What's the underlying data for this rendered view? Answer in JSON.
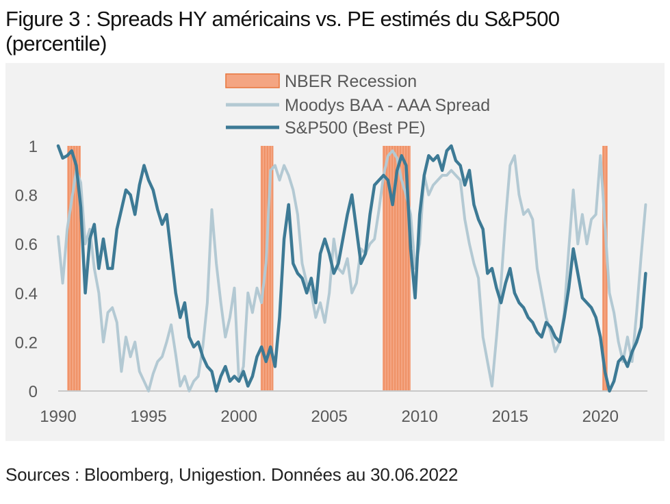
{
  "title": "Figure 3 : Spreads HY américains vs. PE estimés du S&P500 (percentile)",
  "source_note": "Sources : Bloomberg, Unigestion. Données au 30.06.2022",
  "colors": {
    "recession": "#f4a582",
    "recession_border": "#e8743b",
    "moodys": "#b3c9d3",
    "sp500": "#3d7a95",
    "axis": "#c8c8c8",
    "panel": "#f2f2f2"
  },
  "chart_data": {
    "type": "line",
    "title": "Figure 3 : Spreads HY américains vs. PE estimés du S&P500 (percentile)",
    "xlabel": "",
    "ylabel": "",
    "xlim": [
      1990,
      2022.6
    ],
    "ylim": [
      0,
      1
    ],
    "x_ticks": [
      "1990",
      "1995",
      "2000",
      "2005",
      "2010",
      "2015",
      "2020"
    ],
    "y_ticks": [
      "0",
      "0.2",
      "0.4",
      "0.6",
      "0.8",
      "1"
    ],
    "grid": false,
    "legend_position": "top-center",
    "legend": [
      "NBER Recession",
      "Moodys BAA - AAA Spread",
      "S&P500 (Best PE)"
    ],
    "recessions": [
      {
        "start": 1990.5,
        "end": 1991.25
      },
      {
        "start": 2001.2,
        "end": 2001.9
      },
      {
        "start": 2007.95,
        "end": 2009.5
      },
      {
        "start": 2020.1,
        "end": 2020.4
      }
    ],
    "series": [
      {
        "name": "Moodys BAA - AAA Spread",
        "x": [
          1990.0,
          1990.25,
          1990.5,
          1990.75,
          1991.0,
          1991.25,
          1991.5,
          1991.75,
          1992.0,
          1992.25,
          1992.5,
          1992.75,
          1993.0,
          1993.25,
          1993.5,
          1993.75,
          1994.0,
          1994.25,
          1994.5,
          1994.75,
          1995.0,
          1995.25,
          1995.5,
          1995.75,
          1996.0,
          1996.25,
          1996.5,
          1996.75,
          1997.0,
          1997.25,
          1997.5,
          1997.75,
          1998.0,
          1998.25,
          1998.5,
          1998.75,
          1999.0,
          1999.25,
          1999.5,
          1999.75,
          2000.0,
          2000.25,
          2000.5,
          2000.75,
          2001.0,
          2001.25,
          2001.5,
          2001.75,
          2002.0,
          2002.25,
          2002.5,
          2002.75,
          2003.0,
          2003.25,
          2003.5,
          2003.75,
          2004.0,
          2004.25,
          2004.5,
          2004.75,
          2005.0,
          2005.25,
          2005.5,
          2005.75,
          2006.0,
          2006.25,
          2006.5,
          2006.75,
          2007.0,
          2007.25,
          2007.5,
          2007.75,
          2008.0,
          2008.25,
          2008.5,
          2008.75,
          2009.0,
          2009.25,
          2009.5,
          2009.75,
          2010.0,
          2010.25,
          2010.5,
          2010.75,
          2011.0,
          2011.25,
          2011.5,
          2011.75,
          2012.0,
          2012.25,
          2012.5,
          2012.75,
          2013.0,
          2013.25,
          2013.5,
          2013.75,
          2014.0,
          2014.25,
          2014.5,
          2014.75,
          2015.0,
          2015.25,
          2015.5,
          2015.75,
          2016.0,
          2016.25,
          2016.5,
          2016.75,
          2017.0,
          2017.25,
          2017.5,
          2017.75,
          2018.0,
          2018.25,
          2018.5,
          2018.75,
          2019.0,
          2019.25,
          2019.5,
          2019.75,
          2020.0,
          2020.25,
          2020.5,
          2020.75,
          2021.0,
          2021.25,
          2021.5,
          2021.75,
          2022.0,
          2022.25,
          2022.5
        ],
        "values": [
          0.63,
          0.44,
          0.66,
          0.78,
          0.9,
          0.85,
          0.6,
          0.66,
          0.5,
          0.4,
          0.2,
          0.32,
          0.34,
          0.28,
          0.08,
          0.22,
          0.14,
          0.2,
          0.08,
          0.04,
          0.0,
          0.07,
          0.12,
          0.14,
          0.2,
          0.27,
          0.15,
          0.02,
          0.06,
          0.0,
          0.04,
          0.06,
          0.18,
          0.36,
          0.74,
          0.52,
          0.36,
          0.22,
          0.3,
          0.42,
          0.04,
          0.1,
          0.4,
          0.32,
          0.42,
          0.36,
          0.52,
          0.9,
          0.92,
          0.86,
          0.92,
          0.88,
          0.82,
          0.72,
          0.52,
          0.44,
          0.4,
          0.3,
          0.36,
          0.28,
          0.4,
          0.62,
          0.5,
          0.48,
          0.54,
          0.4,
          0.44,
          0.58,
          0.56,
          0.6,
          0.62,
          0.74,
          0.88,
          0.96,
          0.98,
          0.95,
          0.86,
          0.8,
          0.72,
          0.5,
          0.6,
          0.88,
          0.8,
          0.84,
          0.86,
          0.88,
          0.88,
          0.9,
          0.88,
          0.86,
          0.7,
          0.6,
          0.52,
          0.46,
          0.22,
          0.12,
          0.02,
          0.22,
          0.44,
          0.7,
          0.92,
          0.96,
          0.8,
          0.72,
          0.74,
          0.7,
          0.5,
          0.4,
          0.3,
          0.24,
          0.16,
          0.2,
          0.32,
          0.58,
          0.82,
          0.6,
          0.72,
          0.6,
          0.7,
          0.72,
          0.96,
          0.68,
          0.4,
          0.32,
          0.2,
          0.12,
          0.22,
          0.12,
          0.32,
          0.55,
          0.76
        ]
      },
      {
        "name": "S&P500 (Best PE)",
        "x": [
          1990.0,
          1990.25,
          1990.5,
          1990.75,
          1991.0,
          1991.25,
          1991.5,
          1991.75,
          1992.0,
          1992.25,
          1992.5,
          1992.75,
          1993.0,
          1993.25,
          1993.5,
          1993.75,
          1994.0,
          1994.25,
          1994.5,
          1994.75,
          1995.0,
          1995.25,
          1995.5,
          1995.75,
          1996.0,
          1996.25,
          1996.5,
          1996.75,
          1997.0,
          1997.25,
          1997.5,
          1997.75,
          1998.0,
          1998.25,
          1998.5,
          1998.75,
          1999.0,
          1999.25,
          1999.5,
          1999.75,
          2000.0,
          2000.25,
          2000.5,
          2000.75,
          2001.0,
          2001.25,
          2001.5,
          2001.75,
          2002.0,
          2002.25,
          2002.5,
          2002.75,
          2003.0,
          2003.25,
          2003.5,
          2003.75,
          2004.0,
          2004.25,
          2004.5,
          2004.75,
          2005.0,
          2005.25,
          2005.5,
          2005.75,
          2006.0,
          2006.25,
          2006.5,
          2006.75,
          2007.0,
          2007.25,
          2007.5,
          2007.75,
          2008.0,
          2008.25,
          2008.5,
          2008.75,
          2009.0,
          2009.25,
          2009.5,
          2009.75,
          2010.0,
          2010.25,
          2010.5,
          2010.75,
          2011.0,
          2011.25,
          2011.5,
          2011.75,
          2012.0,
          2012.25,
          2012.5,
          2012.75,
          2013.0,
          2013.25,
          2013.5,
          2013.75,
          2014.0,
          2014.25,
          2014.5,
          2014.75,
          2015.0,
          2015.25,
          2015.5,
          2015.75,
          2016.0,
          2016.25,
          2016.5,
          2016.75,
          2017.0,
          2017.25,
          2017.5,
          2017.75,
          2018.0,
          2018.25,
          2018.5,
          2018.75,
          2019.0,
          2019.25,
          2019.5,
          2019.75,
          2020.0,
          2020.25,
          2020.5,
          2020.75,
          2021.0,
          2021.25,
          2021.5,
          2021.75,
          2022.0,
          2022.25,
          2022.5
        ],
        "values": [
          1.0,
          0.95,
          0.96,
          0.98,
          0.92,
          0.75,
          0.4,
          0.62,
          0.68,
          0.5,
          0.62,
          0.5,
          0.5,
          0.66,
          0.74,
          0.82,
          0.8,
          0.72,
          0.84,
          0.92,
          0.86,
          0.82,
          0.74,
          0.68,
          0.72,
          0.56,
          0.4,
          0.3,
          0.36,
          0.22,
          0.18,
          0.2,
          0.14,
          0.1,
          0.08,
          0.0,
          0.06,
          0.1,
          0.04,
          0.06,
          0.04,
          0.08,
          0.02,
          0.06,
          0.14,
          0.18,
          0.12,
          0.18,
          0.1,
          0.3,
          0.62,
          0.76,
          0.52,
          0.48,
          0.46,
          0.4,
          0.46,
          0.36,
          0.56,
          0.62,
          0.56,
          0.48,
          0.52,
          0.62,
          0.72,
          0.8,
          0.66,
          0.52,
          0.56,
          0.72,
          0.84,
          0.86,
          0.88,
          0.86,
          0.76,
          0.9,
          0.96,
          0.92,
          0.58,
          0.38,
          0.72,
          0.88,
          0.96,
          0.94,
          0.96,
          0.9,
          0.98,
          1.0,
          0.94,
          0.92,
          0.84,
          0.9,
          0.76,
          0.7,
          0.66,
          0.48,
          0.5,
          0.42,
          0.36,
          0.44,
          0.5,
          0.4,
          0.36,
          0.34,
          0.3,
          0.28,
          0.24,
          0.22,
          0.28,
          0.26,
          0.22,
          0.2,
          0.3,
          0.42,
          0.58,
          0.48,
          0.38,
          0.36,
          0.34,
          0.3,
          0.22,
          0.08,
          0.0,
          0.04,
          0.12,
          0.14,
          0.1,
          0.16,
          0.2,
          0.26,
          0.48
        ]
      }
    ]
  }
}
